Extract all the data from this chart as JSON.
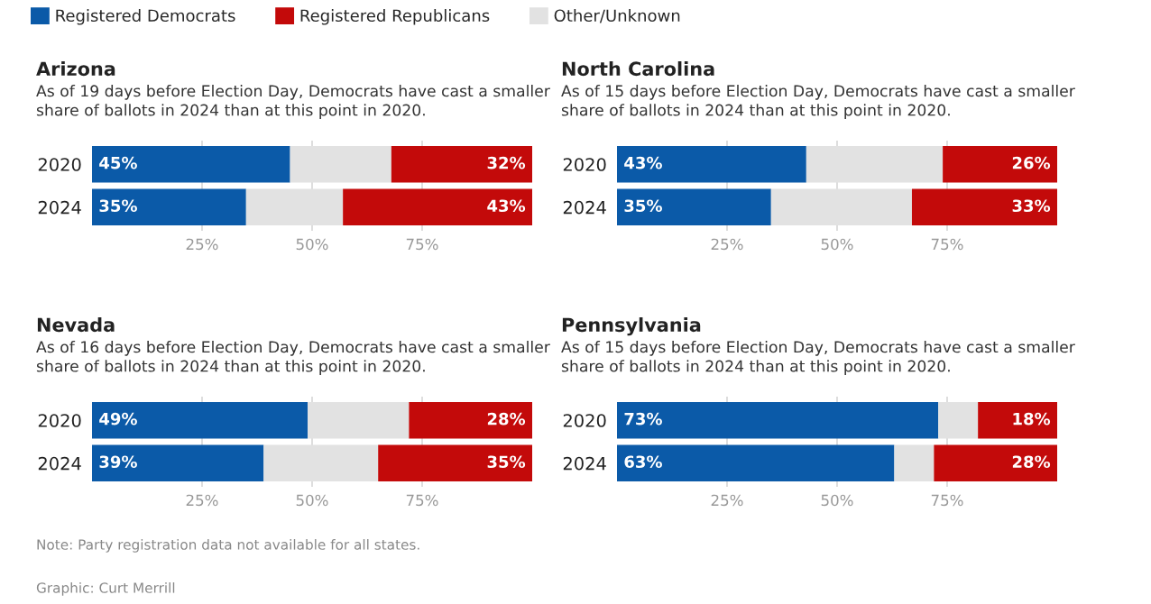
{
  "chart_data": [
    {
      "type": "bar",
      "orientation": "horizontal",
      "stacked": true,
      "title": "Arizona",
      "subtitle": "As of 19 days before Election Day, Democrats have cast a smaller share of ballots in 2024 than at this point in 2020.",
      "categories": [
        "2020",
        "2024"
      ],
      "legend": "top",
      "grid": "x",
      "xlim": [
        0,
        100
      ],
      "xticks": [
        {
          "value": 25,
          "label": "25%"
        },
        {
          "value": 50,
          "label": "50%"
        },
        {
          "value": 75,
          "label": "75%"
        }
      ],
      "series": [
        {
          "name": "Registered Democrats",
          "color": "#0b5aa8",
          "values": [
            45,
            35
          ],
          "value_labels": [
            "45%",
            "35%"
          ]
        },
        {
          "name": "Other/Unknown",
          "color": "#e2e2e2",
          "values": [
            23,
            22
          ]
        },
        {
          "name": "Registered Republicans",
          "color": "#c30a0a",
          "values": [
            32,
            43
          ],
          "value_labels": [
            "32%",
            "43%"
          ]
        }
      ]
    },
    {
      "type": "bar",
      "orientation": "horizontal",
      "stacked": true,
      "title": "North Carolina",
      "subtitle": "As of 15 days before Election Day, Democrats have cast a smaller share of ballots in 2024 than at this point in 2020.",
      "categories": [
        "2020",
        "2024"
      ],
      "grid": "x",
      "xlim": [
        0,
        100
      ],
      "xticks": [
        {
          "value": 25,
          "label": "25%"
        },
        {
          "value": 50,
          "label": "50%"
        },
        {
          "value": 75,
          "label": "75%"
        }
      ],
      "series": [
        {
          "color": "#0b5aa8",
          "values": [
            43,
            35
          ],
          "value_labels": [
            "43%",
            "35%"
          ]
        },
        {
          "color": "#e2e2e2",
          "values": [
            31,
            32
          ]
        },
        {
          "color": "#c30a0a",
          "values": [
            26,
            33
          ],
          "value_labels": [
            "26%",
            "33%"
          ]
        }
      ]
    },
    {
      "type": "bar",
      "orientation": "horizontal",
      "stacked": true,
      "title": "Nevada",
      "subtitle": "As of 16 days before Election Day, Democrats have cast a smaller share of ballots in 2024 than at this point in 2020.",
      "categories": [
        "2020",
        "2024"
      ],
      "grid": "x",
      "xlim": [
        0,
        100
      ],
      "xticks": [
        {
          "value": 25,
          "label": "25%"
        },
        {
          "value": 50,
          "label": "50%"
        },
        {
          "value": 75,
          "label": "75%"
        }
      ],
      "annotations": [
        "Note: Party registration data not available for all states.",
        "Graphic: Curt Merrill"
      ],
      "series": [
        {
          "color": "#0b5aa8",
          "values": [
            49,
            39
          ],
          "value_labels": [
            "49%",
            "39%"
          ]
        },
        {
          "color": "#e2e2e2",
          "values": [
            23,
            26
          ]
        },
        {
          "color": "#c30a0a",
          "values": [
            28,
            35
          ],
          "value_labels": [
            "28%",
            "35%"
          ]
        }
      ]
    },
    {
      "type": "bar",
      "orientation": "horizontal",
      "stacked": true,
      "title": "Pennsylvania",
      "subtitle": "As of 15 days before Election Day, Democrats have cast a smaller share of ballots in 2024 than at this point in 2020.",
      "categories": [
        "2020",
        "2024"
      ],
      "grid": "x",
      "xlim": [
        0,
        100
      ],
      "xticks": [
        {
          "value": 25,
          "label": "25%"
        },
        {
          "value": 50,
          "label": "50%"
        },
        {
          "value": 75,
          "label": "75%"
        }
      ],
      "series": [
        {
          "color": "#0b5aa8",
          "values": [
            73,
            63
          ],
          "value_labels": [
            "73%",
            "63%"
          ]
        },
        {
          "color": "#e2e2e2",
          "values": [
            9,
            9
          ]
        },
        {
          "color": "#c30a0a",
          "values": [
            18,
            28
          ],
          "value_labels": [
            "18%",
            "28%"
          ]
        }
      ]
    }
  ]
}
